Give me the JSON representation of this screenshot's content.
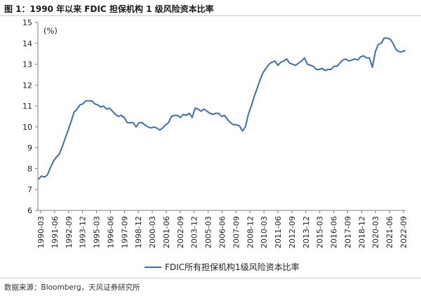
{
  "figure_title": "图 1：1990 年以来 FDIC 担保机构 1 级风险资本比率",
  "source_note": "数据来源：Bloomberg，天风证券研究所",
  "chart_data": {
    "type": "line",
    "unit_label": "(%)",
    "ylim": [
      6,
      15
    ],
    "y_ticks": [
      6,
      7,
      8,
      9,
      10,
      11,
      12,
      13,
      14,
      15
    ],
    "x_tick_labels": [
      "1990-03",
      "1991-06",
      "1992-09",
      "1993-12",
      "1995-03",
      "1996-06",
      "1997-09",
      "1998-12",
      "2000-03",
      "2001-06",
      "2002-09",
      "2003-12",
      "2005-03",
      "2006-06",
      "2007-09",
      "2008-12",
      "2010-03",
      "2011-06",
      "2012-09",
      "2013-12",
      "2015-03",
      "2016-06",
      "2017-09",
      "2018-12",
      "2020-03",
      "2021-06",
      "2022-09"
    ],
    "grid": false,
    "legend_position": "bottom",
    "series": [
      {
        "name": "FDIC所有担保机构1级风险资本比率",
        "color": "#3c6eb4",
        "values": [
          7.5,
          7.65,
          7.6,
          7.7,
          8.05,
          8.35,
          8.55,
          8.7,
          9.05,
          9.45,
          9.85,
          10.25,
          10.7,
          10.85,
          11.05,
          11.1,
          11.25,
          11.25,
          11.25,
          11.1,
          11.05,
          10.95,
          11.0,
          10.85,
          10.9,
          10.75,
          10.6,
          10.5,
          10.55,
          10.45,
          10.2,
          10.2,
          10.2,
          10.0,
          10.2,
          10.2,
          10.1,
          10.0,
          9.95,
          10.0,
          9.95,
          9.85,
          9.95,
          10.1,
          10.2,
          10.5,
          10.55,
          10.55,
          10.45,
          10.6,
          10.55,
          10.65,
          10.45,
          10.9,
          10.85,
          10.75,
          10.85,
          10.75,
          10.65,
          10.6,
          10.65,
          10.65,
          10.5,
          10.55,
          10.35,
          10.2,
          10.1,
          10.1,
          10.05,
          9.8,
          10.0,
          10.6,
          11.0,
          11.45,
          11.85,
          12.25,
          12.6,
          12.8,
          13.0,
          13.1,
          13.15,
          12.95,
          13.1,
          13.15,
          13.25,
          13.05,
          13.0,
          12.95,
          13.05,
          13.15,
          13.3,
          13.0,
          12.95,
          12.9,
          12.75,
          12.75,
          12.8,
          12.7,
          12.75,
          12.75,
          12.9,
          12.9,
          13.05,
          13.2,
          13.25,
          13.15,
          13.2,
          13.25,
          13.2,
          13.35,
          13.4,
          13.3,
          13.3,
          12.85,
          13.6,
          13.95,
          14.0,
          14.25,
          14.25,
          14.2,
          14.0,
          13.7,
          13.6,
          13.6,
          13.65
        ]
      }
    ]
  }
}
